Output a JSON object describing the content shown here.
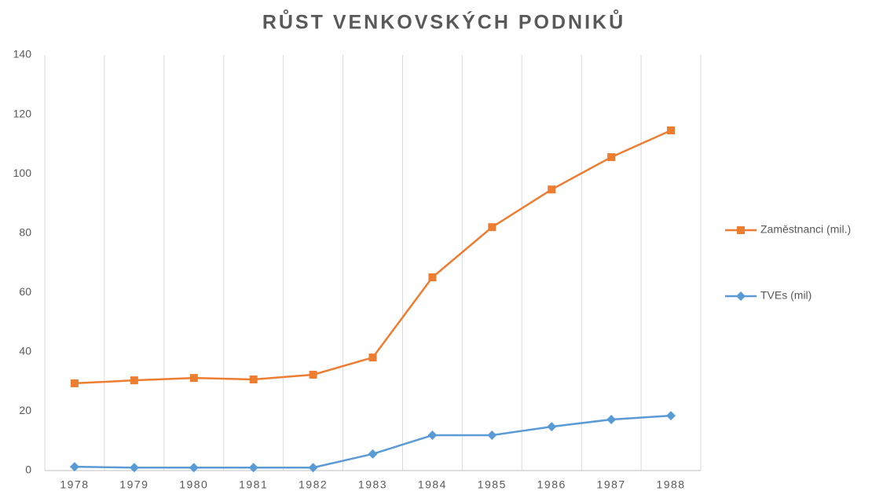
{
  "chart_data": {
    "type": "line",
    "title": "RŮST VENKOVSKÝCH PODNIKŮ",
    "categories": [
      "1978",
      "1979",
      "1980",
      "1981",
      "1982",
      "1983",
      "1984",
      "1985",
      "1986",
      "1987",
      "1988"
    ],
    "series": [
      {
        "name": "Zaměstnanci (mil.)",
        "color": "#ed7d31",
        "marker": "square",
        "values": [
          29.4,
          30.4,
          31.2,
          30.7,
          32.3,
          38.1,
          65.1,
          82,
          94.7,
          105.6,
          114.6
        ]
      },
      {
        "name": "TVEs (mil)",
        "color": "#5b9bd5",
        "marker": "diamond",
        "values": [
          1.3,
          1,
          1,
          1,
          1,
          5.6,
          11.9,
          11.9,
          14.8,
          17.2,
          18.5
        ]
      }
    ],
    "ylim": [
      0,
      140
    ],
    "yticks": [
      0,
      20,
      40,
      60,
      80,
      100,
      120,
      140
    ],
    "grid": "vertical",
    "legend": "right"
  }
}
